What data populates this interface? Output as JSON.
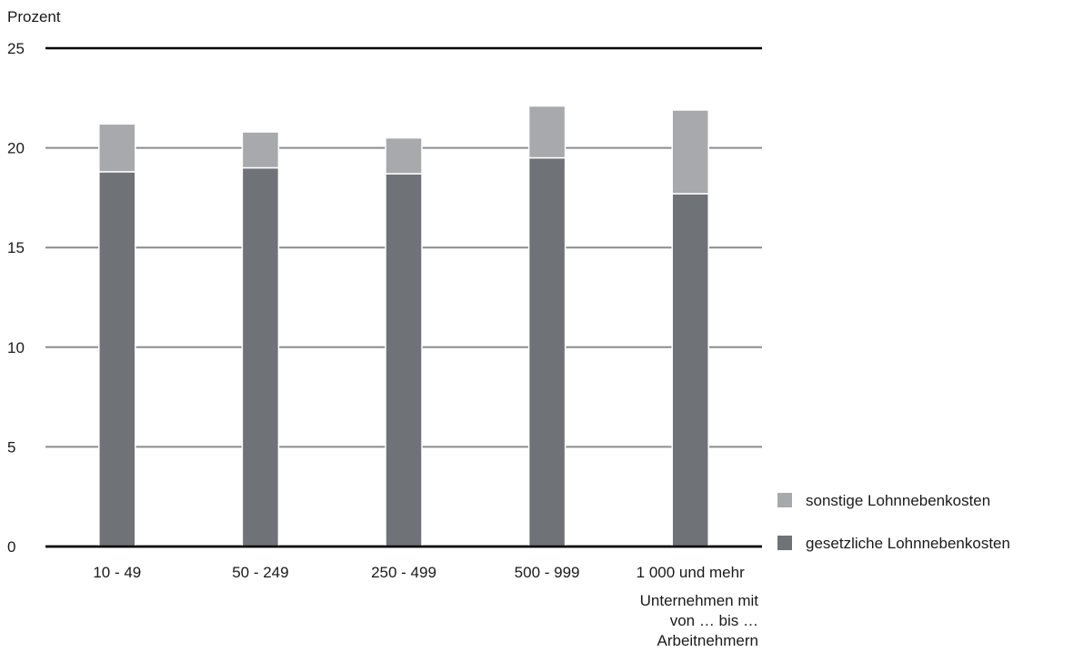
{
  "chart_data": {
    "type": "bar",
    "stacked": true,
    "ylabel": "Prozent",
    "xlabel": [
      "Unternehmen mit",
      "von … bis …",
      "Arbeitnehmern"
    ],
    "ylim": [
      0,
      25
    ],
    "yticks": [
      0,
      5,
      10,
      15,
      20,
      25
    ],
    "grid": true,
    "legend_position": "right",
    "categories": [
      "10 - 49",
      "50 - 249",
      "250 - 499",
      "500 - 999",
      "1 000 und mehr"
    ],
    "series": [
      {
        "name": "gesetzliche Lohnnebenkosten",
        "color": "#6f7276",
        "values": [
          18.8,
          19.0,
          18.7,
          19.5,
          17.7
        ]
      },
      {
        "name": "sonstige Lohnnebenkosten",
        "color": "#a7a9ac",
        "values": [
          2.4,
          1.8,
          1.8,
          2.6,
          4.2
        ]
      }
    ],
    "legend_order": [
      "sonstige Lohnnebenkosten",
      "gesetzliche Lohnnebenkosten"
    ]
  }
}
